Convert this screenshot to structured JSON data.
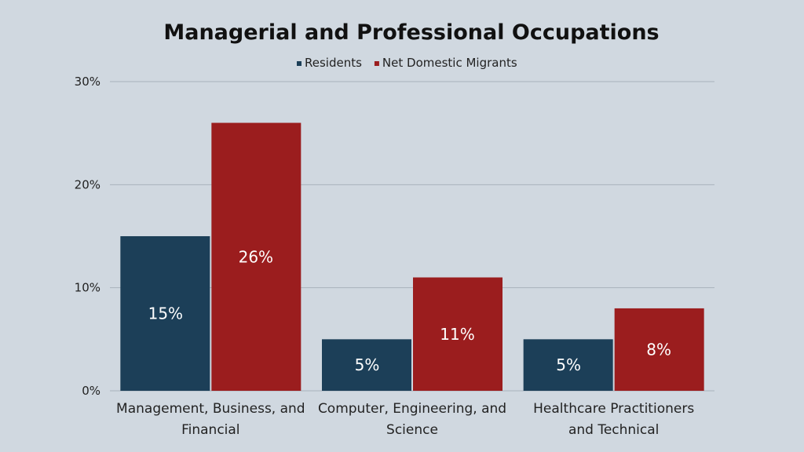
{
  "chart_data": {
    "type": "bar",
    "title": "Managerial and Professional Occupations",
    "categories": [
      [
        "Management, Business, and",
        "Financial"
      ],
      [
        "Computer, Engineering, and",
        "Science"
      ],
      [
        "Healthcare Practitioners",
        "and Technical"
      ]
    ],
    "series": [
      {
        "name": "Residents",
        "values": [
          15,
          5,
          5
        ],
        "labels": [
          "15%",
          "5%",
          "5%"
        ],
        "color": "#1c3f58"
      },
      {
        "name": "Net Domestic Migrants",
        "values": [
          26,
          11,
          8
        ],
        "labels": [
          "26%",
          "11%",
          "8%"
        ],
        "color": "#9b1d1e"
      }
    ],
    "y_ticks": [
      {
        "value": 0,
        "label": "0%"
      },
      {
        "value": 10,
        "label": "10%"
      },
      {
        "value": 20,
        "label": "20%"
      },
      {
        "value": 30,
        "label": "30%"
      }
    ],
    "ylim": [
      0,
      30
    ],
    "grid": true,
    "legend_position": "top-center",
    "colors": {
      "background": "#d0d8e0",
      "gridline": "#a9b2bb",
      "data_label": "#ffffff"
    }
  }
}
